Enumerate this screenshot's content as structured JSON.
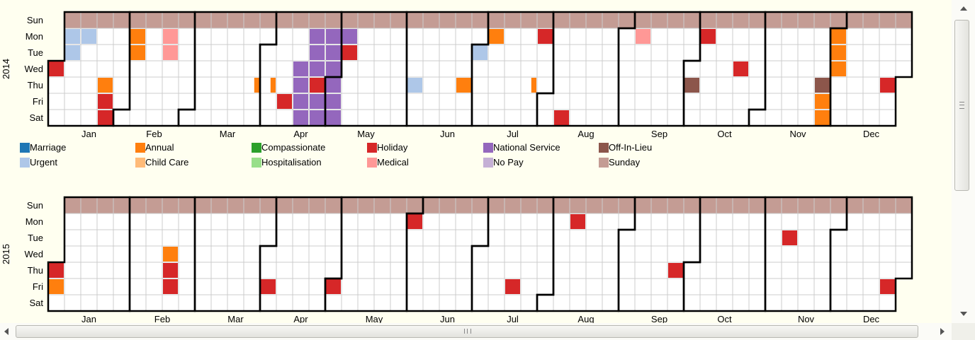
{
  "chart_data": {
    "type": "heatmap",
    "title": "",
    "day_labels": [
      "Sun",
      "Mon",
      "Tue",
      "Wed",
      "Thu",
      "Fri",
      "Sat"
    ],
    "month_labels": [
      "Jan",
      "Feb",
      "Mar",
      "Apr",
      "May",
      "Jun",
      "Jul",
      "Aug",
      "Sep",
      "Oct",
      "Nov",
      "Dec"
    ],
    "legend_position": "bottom",
    "legend": [
      {
        "name": "Marriage",
        "color": "#1f77b4"
      },
      {
        "name": "Annual",
        "color": "#ff7f0e"
      },
      {
        "name": "Compassionate",
        "color": "#2ca02c"
      },
      {
        "name": "Holiday",
        "color": "#d62728"
      },
      {
        "name": "National Service",
        "color": "#9467bd"
      },
      {
        "name": "Off-In-Lieu",
        "color": "#8c564b"
      },
      {
        "name": "Urgent",
        "color": "#aec7e8"
      },
      {
        "name": "Child Care",
        "color": "#ffbb78"
      },
      {
        "name": "Hospitalisation",
        "color": "#98df8a"
      },
      {
        "name": "Medical",
        "color": "#ff9896"
      },
      {
        "name": "No Pay",
        "color": "#c5b0d5"
      },
      {
        "name": "Sunday",
        "color": "#c49c94"
      }
    ],
    "years": [
      {
        "year": "2014",
        "leaves": [
          {
            "date": "2014-01-01",
            "type": "Holiday"
          },
          {
            "date": "2014-01-06",
            "type": "Urgent"
          },
          {
            "date": "2014-01-07",
            "type": "Urgent"
          },
          {
            "date": "2014-01-13",
            "type": "Urgent"
          },
          {
            "date": "2014-01-23",
            "type": "Annual"
          },
          {
            "date": "2014-01-24",
            "type": "Holiday"
          },
          {
            "date": "2014-01-25",
            "type": "Holiday"
          },
          {
            "date": "2014-02-03",
            "type": "Annual"
          },
          {
            "date": "2014-02-04",
            "type": "Annual"
          },
          {
            "date": "2014-02-17",
            "type": "Medical"
          },
          {
            "date": "2014-02-18",
            "type": "Medical"
          },
          {
            "date": "2014-03-27",
            "type": "Annual",
            "partial": "right-half"
          },
          {
            "date": "2014-04-03",
            "type": "Annual",
            "partial": "right-half"
          },
          {
            "date": "2014-04-11",
            "type": "Holiday"
          },
          {
            "date": "2014-04-16",
            "type": "National Service"
          },
          {
            "date": "2014-04-17",
            "type": "National Service"
          },
          {
            "date": "2014-04-18",
            "type": "National Service"
          },
          {
            "date": "2014-04-19",
            "type": "National Service"
          },
          {
            "date": "2014-04-21",
            "type": "National Service"
          },
          {
            "date": "2014-04-22",
            "type": "National Service"
          },
          {
            "date": "2014-04-23",
            "type": "National Service"
          },
          {
            "date": "2014-04-24",
            "type": "Holiday"
          },
          {
            "date": "2014-04-25",
            "type": "National Service"
          },
          {
            "date": "2014-04-26",
            "type": "National Service"
          },
          {
            "date": "2014-04-28",
            "type": "National Service"
          },
          {
            "date": "2014-04-29",
            "type": "National Service"
          },
          {
            "date": "2014-04-30",
            "type": "National Service"
          },
          {
            "date": "2014-05-01",
            "type": "National Service"
          },
          {
            "date": "2014-05-02",
            "type": "National Service"
          },
          {
            "date": "2014-05-03",
            "type": "National Service"
          },
          {
            "date": "2014-05-05",
            "type": "National Service"
          },
          {
            "date": "2014-05-06",
            "type": "Holiday"
          },
          {
            "date": "2014-06-05",
            "type": "Urgent"
          },
          {
            "date": "2014-06-26",
            "type": "Annual"
          },
          {
            "date": "2014-07-01",
            "type": "Urgent"
          },
          {
            "date": "2014-07-07",
            "type": "Annual"
          },
          {
            "date": "2014-07-24",
            "type": "Annual",
            "partial": "right-half"
          },
          {
            "date": "2014-07-28",
            "type": "Holiday"
          },
          {
            "date": "2014-08-09",
            "type": "Holiday"
          },
          {
            "date": "2014-09-08",
            "type": "Medical"
          },
          {
            "date": "2014-10-06",
            "type": "Holiday"
          },
          {
            "date": "2014-10-02",
            "type": "Off-In-Lieu"
          },
          {
            "date": "2014-10-22",
            "type": "Holiday"
          },
          {
            "date": "2014-11-27",
            "type": "Off-In-Lieu"
          },
          {
            "date": "2014-12-01",
            "type": "Annual"
          },
          {
            "date": "2014-12-02",
            "type": "Annual"
          },
          {
            "date": "2014-12-03",
            "type": "Annual"
          },
          {
            "date": "2014-11-28",
            "type": "Annual"
          },
          {
            "date": "2014-11-29",
            "type": "Annual"
          },
          {
            "date": "2014-12-25",
            "type": "Holiday"
          }
        ]
      },
      {
        "year": "2015",
        "leaves": [
          {
            "date": "2015-01-01",
            "type": "Holiday"
          },
          {
            "date": "2015-01-02",
            "type": "Annual"
          },
          {
            "date": "2015-02-18",
            "type": "Annual"
          },
          {
            "date": "2015-02-19",
            "type": "Holiday"
          },
          {
            "date": "2015-02-20",
            "type": "Holiday"
          },
          {
            "date": "2015-04-03",
            "type": "Holiday"
          },
          {
            "date": "2015-05-01",
            "type": "Holiday"
          },
          {
            "date": "2015-06-01",
            "type": "Holiday"
          },
          {
            "date": "2015-07-17",
            "type": "Holiday"
          },
          {
            "date": "2015-08-10",
            "type": "Holiday"
          },
          {
            "date": "2015-09-24",
            "type": "Holiday"
          },
          {
            "date": "2015-11-10",
            "type": "Holiday"
          },
          {
            "date": "2015-12-25",
            "type": "Holiday"
          }
        ]
      }
    ]
  }
}
